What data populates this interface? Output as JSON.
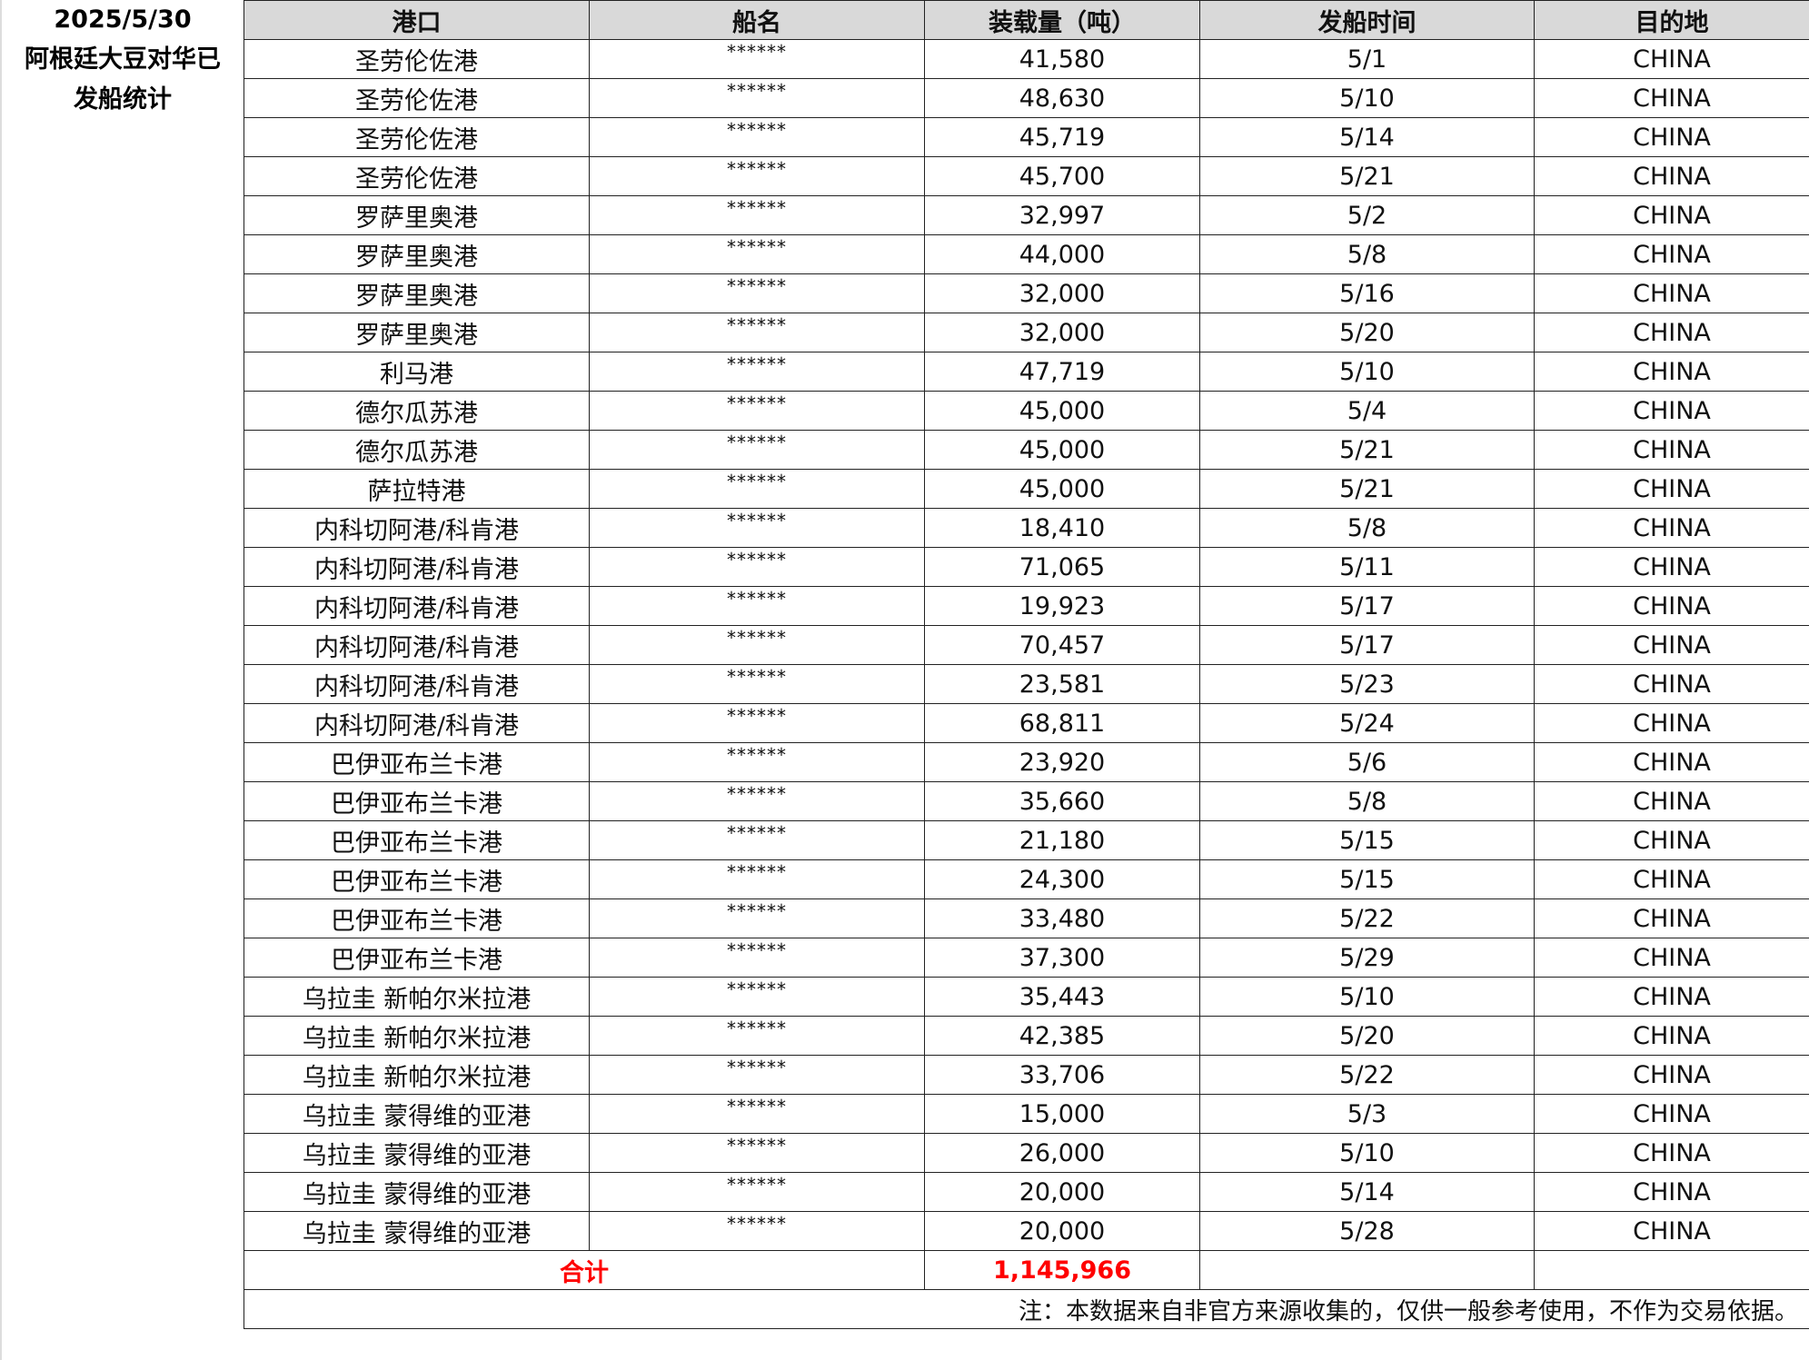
{
  "side": {
    "date": "2025/5/30",
    "title_line1": "阿根廷大豆对华已",
    "title_line2": "发船统计"
  },
  "columns": [
    "港口",
    "船名",
    "装载量（吨）",
    "发船时间",
    "目的地"
  ],
  "rows": [
    [
      "圣劳伦佐港",
      "******",
      "41,580",
      "5/1",
      "CHINA"
    ],
    [
      "圣劳伦佐港",
      "******",
      "48,630",
      "5/10",
      "CHINA"
    ],
    [
      "圣劳伦佐港",
      "******",
      "45,719",
      "5/14",
      "CHINA"
    ],
    [
      "圣劳伦佐港",
      "******",
      "45,700",
      "5/21",
      "CHINA"
    ],
    [
      "罗萨里奥港",
      "******",
      "32,997",
      "5/2",
      "CHINA"
    ],
    [
      "罗萨里奥港",
      "******",
      "44,000",
      "5/8",
      "CHINA"
    ],
    [
      "罗萨里奥港",
      "******",
      "32,000",
      "5/16",
      "CHINA"
    ],
    [
      "罗萨里奥港",
      "******",
      "32,000",
      "5/20",
      "CHINA"
    ],
    [
      "利马港",
      "******",
      "47,719",
      "5/10",
      "CHINA"
    ],
    [
      "德尔瓜苏港",
      "******",
      "45,000",
      "5/4",
      "CHINA"
    ],
    [
      "德尔瓜苏港",
      "******",
      "45,000",
      "5/21",
      "CHINA"
    ],
    [
      "萨拉特港",
      "******",
      "45,000",
      "5/21",
      "CHINA"
    ],
    [
      "内科切阿港/科肯港",
      "******",
      "18,410",
      "5/8",
      "CHINA"
    ],
    [
      "内科切阿港/科肯港",
      "******",
      "71,065",
      "5/11",
      "CHINA"
    ],
    [
      "内科切阿港/科肯港",
      "******",
      "19,923",
      "5/17",
      "CHINA"
    ],
    [
      "内科切阿港/科肯港",
      "******",
      "70,457",
      "5/17",
      "CHINA"
    ],
    [
      "内科切阿港/科肯港",
      "******",
      "23,581",
      "5/23",
      "CHINA"
    ],
    [
      "内科切阿港/科肯港",
      "******",
      "68,811",
      "5/24",
      "CHINA"
    ],
    [
      "巴伊亚布兰卡港",
      "******",
      "23,920",
      "5/6",
      "CHINA"
    ],
    [
      "巴伊亚布兰卡港",
      "******",
      "35,660",
      "5/8",
      "CHINA"
    ],
    [
      "巴伊亚布兰卡港",
      "******",
      "21,180",
      "5/15",
      "CHINA"
    ],
    [
      "巴伊亚布兰卡港",
      "******",
      "24,300",
      "5/15",
      "CHINA"
    ],
    [
      "巴伊亚布兰卡港",
      "******",
      "33,480",
      "5/22",
      "CHINA"
    ],
    [
      "巴伊亚布兰卡港",
      "******",
      "37,300",
      "5/29",
      "CHINA"
    ],
    [
      "乌拉圭 新帕尔米拉港",
      "******",
      "35,443",
      "5/10",
      "CHINA"
    ],
    [
      "乌拉圭 新帕尔米拉港",
      "******",
      "42,385",
      "5/20",
      "CHINA"
    ],
    [
      "乌拉圭 新帕尔米拉港",
      "******",
      "33,706",
      "5/22",
      "CHINA"
    ],
    [
      "乌拉圭 蒙得维的亚港",
      "******",
      "15,000",
      "5/3",
      "CHINA"
    ],
    [
      "乌拉圭 蒙得维的亚港",
      "******",
      "26,000",
      "5/10",
      "CHINA"
    ],
    [
      "乌拉圭 蒙得维的亚港",
      "******",
      "20,000",
      "5/14",
      "CHINA"
    ],
    [
      "乌拉圭 蒙得维的亚港",
      "******",
      "20,000",
      "5/28",
      "CHINA"
    ]
  ],
  "total": {
    "label": "合计",
    "value": "1,145,966"
  },
  "note": "注：本数据来自非官方来源收集的，仅供一般参考使用，不作为交易依据。",
  "colors": {
    "header_bg": "#d9d9d9",
    "total_text": "#ff0000"
  }
}
